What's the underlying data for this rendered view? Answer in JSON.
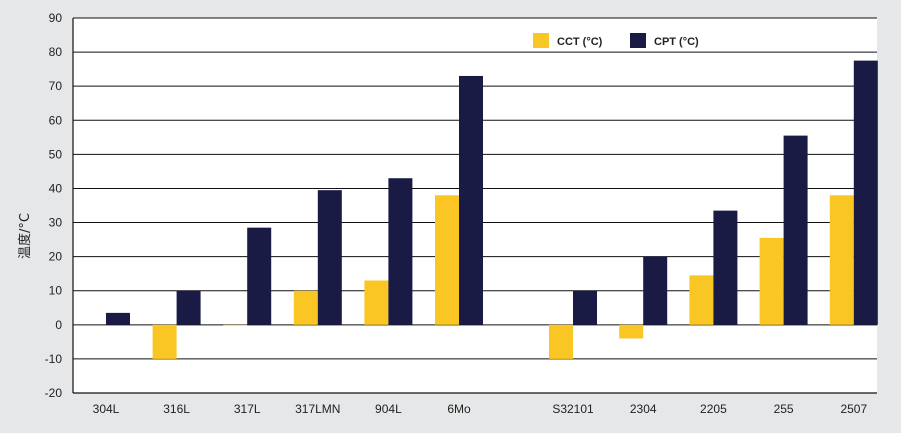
{
  "chart_data": {
    "type": "bar",
    "title": "",
    "xlabel": "",
    "ylabel": "温度/°C",
    "ylim": [
      -20,
      90
    ],
    "yticks": [
      -20,
      -10,
      0,
      10,
      20,
      30,
      40,
      50,
      60,
      70,
      80,
      90
    ],
    "grid": true,
    "legend_position": "top-right",
    "groups": [
      {
        "categories": [
          "304L",
          "316L",
          "317L",
          "317LMN",
          "904L",
          "6Mo"
        ]
      },
      {
        "categories": [
          "S32101",
          "2304",
          "2205",
          "255",
          "2507"
        ]
      }
    ],
    "categories": [
      "304L",
      "316L",
      "317L",
      "317LMN",
      "904L",
      "6Mo",
      "S32101",
      "2304",
      "2205",
      "255",
      "2507"
    ],
    "series": [
      {
        "name": "CCT (°C)",
        "color": "#f9c623",
        "values": [
          null,
          -10,
          0,
          10,
          13,
          38,
          -10,
          -4,
          14.5,
          25.5,
          38
        ]
      },
      {
        "name": "CPT (°C)",
        "color": "#191b45",
        "values": [
          3.5,
          10,
          28.5,
          39.5,
          43,
          73,
          10,
          20,
          33.5,
          55.5,
          77.5
        ]
      }
    ]
  }
}
